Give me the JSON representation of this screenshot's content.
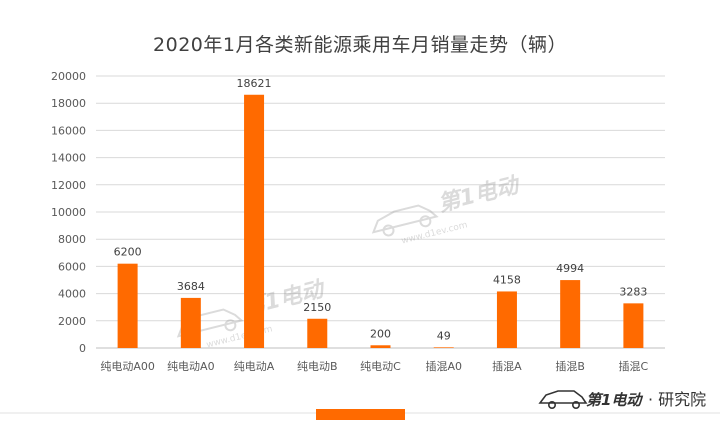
{
  "chart_data": {
    "type": "bar",
    "title": "2020年1月各类新能源乘用车月销量走势（辆）",
    "categories": [
      "纯电动A00",
      "纯电动A0",
      "纯电动A",
      "纯电动B",
      "纯电动C",
      "插混A0",
      "插混A",
      "插混B",
      "插混C"
    ],
    "values": [
      6200,
      3684,
      18621,
      2150,
      200,
      49,
      4158,
      4994,
      3283
    ],
    "ylim": [
      0,
      20000
    ],
    "yticks": [
      0,
      2000,
      4000,
      6000,
      8000,
      10000,
      12000,
      14000,
      16000,
      18000,
      20000
    ],
    "xlabel": "",
    "ylabel": "",
    "grid": true,
    "bar_color": "#FF6A00"
  },
  "watermark": {
    "text": "第1电动",
    "url": "www.d1ev.com"
  },
  "branding": {
    "logo_text": "第1电动",
    "suffix": "· 研究院"
  }
}
